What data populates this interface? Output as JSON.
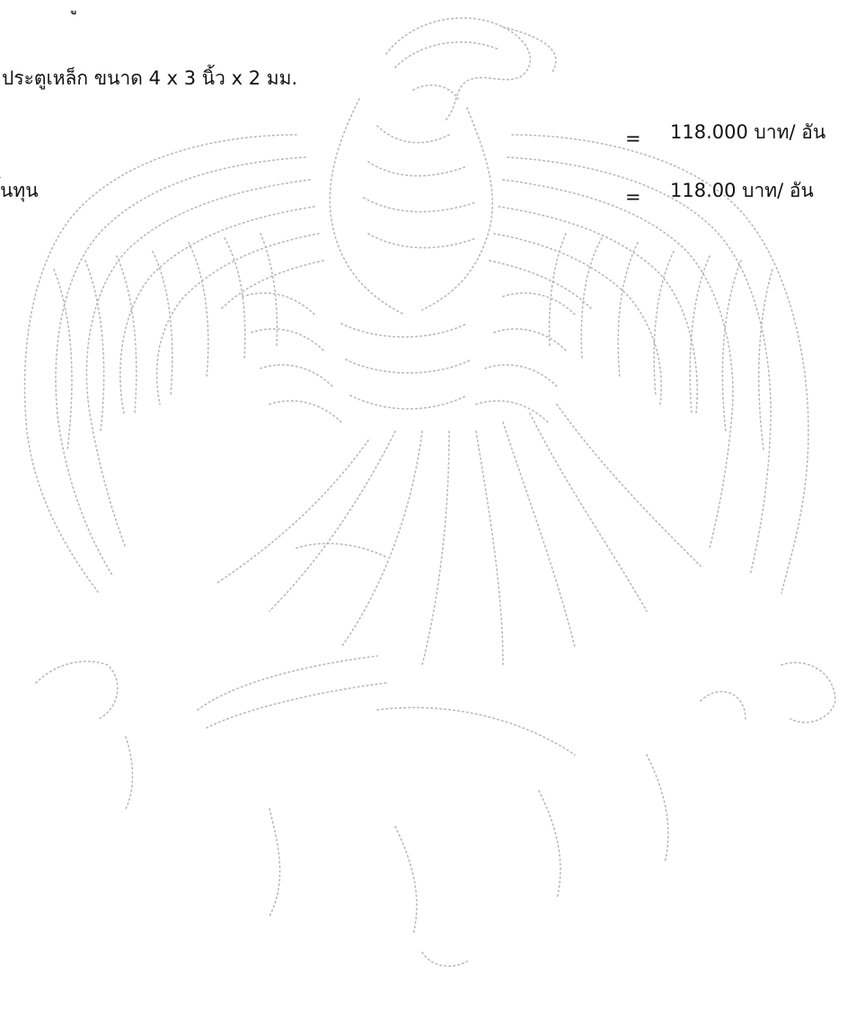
{
  "document": {
    "top_fragment": "ู",
    "item_title": "ประตูเหล็ก ขนาด 4 x 3 นิ้ว x 2 มม.",
    "rows": [
      {
        "label": "",
        "equals": "=",
        "value": "118.000 บาท/ อัน"
      },
      {
        "label": "้นทุน",
        "equals": "=",
        "value": "118.00 บาท/ อัน"
      }
    ]
  },
  "watermark": {
    "type": "garuda-emblem",
    "color": "#b8b8b8"
  }
}
